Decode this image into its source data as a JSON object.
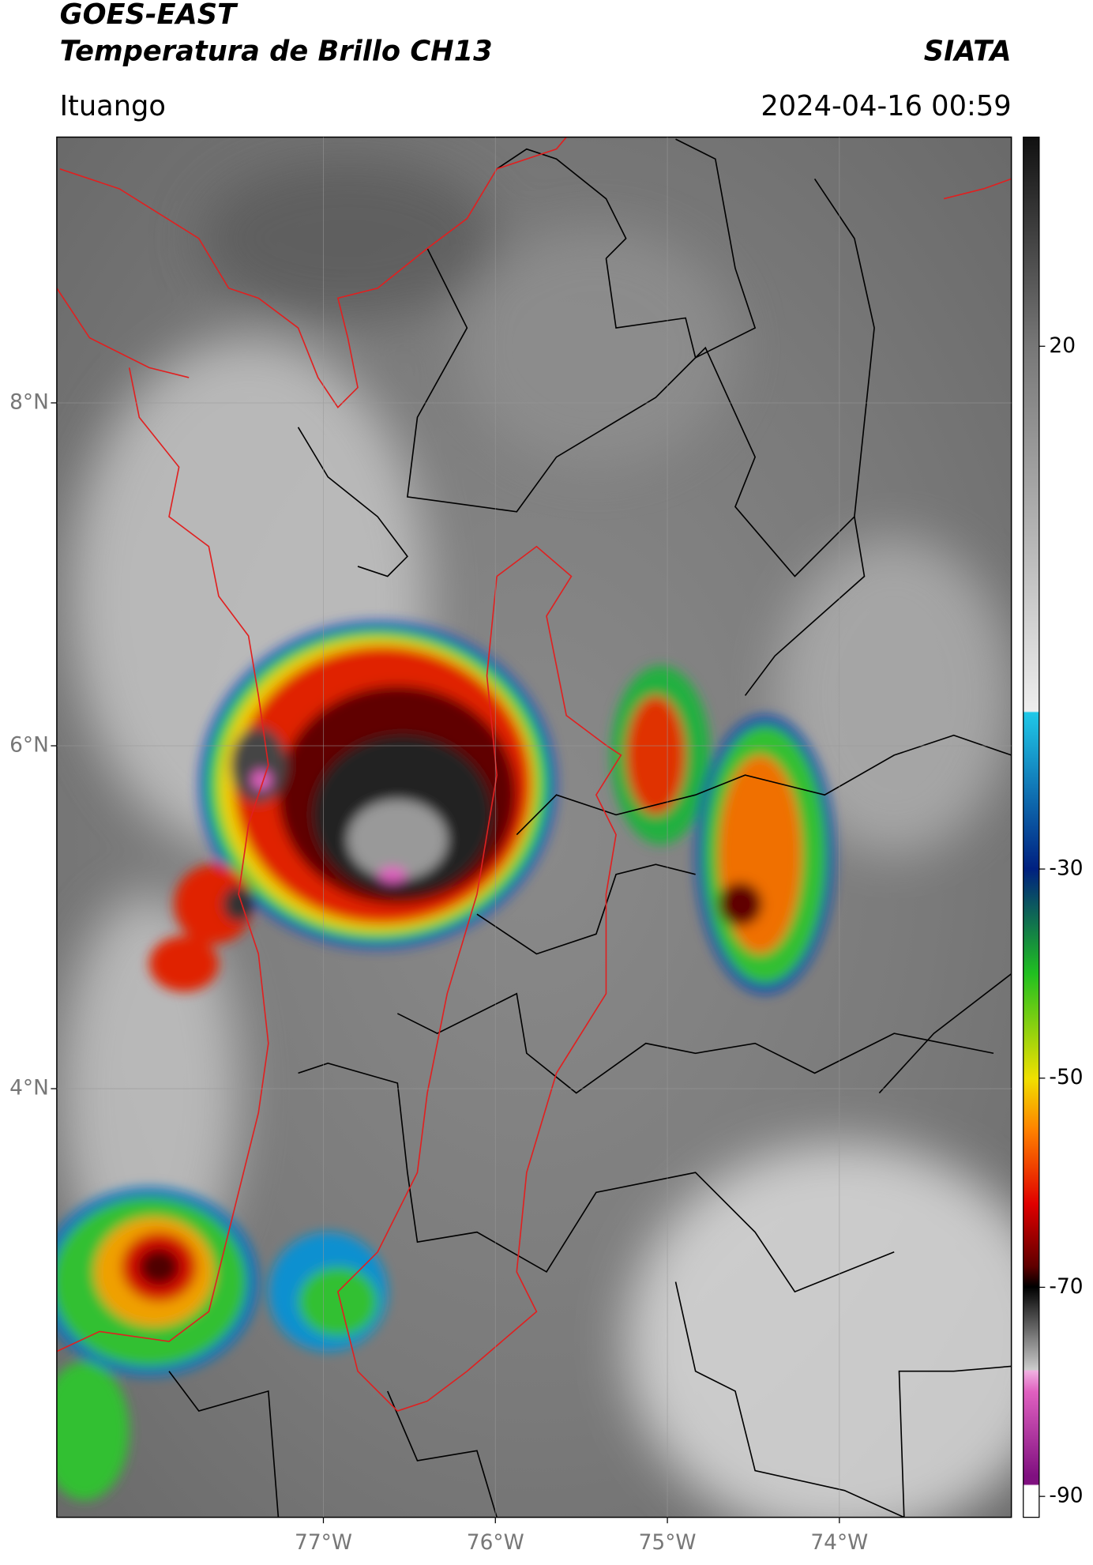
{
  "header": {
    "title": "GOES-EAST",
    "subtitle": "Temperatura de Brillo CH13",
    "source": "SIATA",
    "location": "Ituango",
    "datetime": "2024-04-16 00:59"
  },
  "map": {
    "xlim": [
      -78.55,
      -73.0
    ],
    "ylim": [
      1.5,
      9.55
    ],
    "xticks": [
      {
        "value": -77,
        "label": "77°W"
      },
      {
        "value": -76,
        "label": "76°W"
      },
      {
        "value": -75,
        "label": "75°W"
      },
      {
        "value": -74,
        "label": "74°W"
      }
    ],
    "yticks": [
      {
        "value": 8,
        "label": "8°N"
      },
      {
        "value": 6,
        "label": "6°N"
      },
      {
        "value": 4,
        "label": "4°N"
      }
    ]
  },
  "colorbar": {
    "lim": [
      -92,
      40
    ],
    "ticks": [
      20,
      -30,
      -50,
      -70,
      -90
    ]
  }
}
